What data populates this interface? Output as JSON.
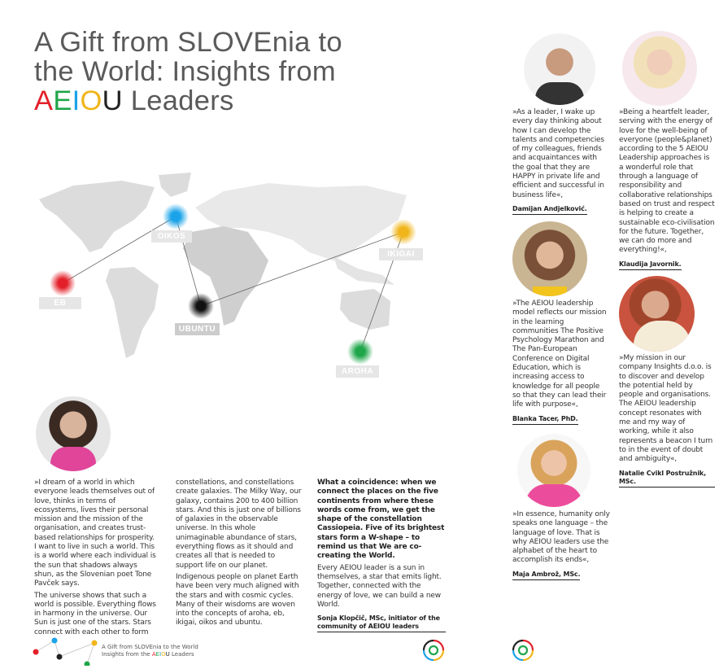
{
  "title": {
    "line1": "A Gift from SLOVEnia to",
    "line2": "the World: Insights from",
    "aeiou": [
      "A",
      "E",
      "I",
      "O",
      "U"
    ],
    "line3_rest": " Leaders"
  },
  "colors": {
    "red": "#e3202a",
    "green": "#1fa64a",
    "blue": "#1aa3e8",
    "yellow": "#f0b51a",
    "black": "#222222"
  },
  "map": {
    "places": [
      {
        "label": "EB",
        "color": "#e3202a"
      },
      {
        "label": "OIKOS",
        "color": "#1aa3e8"
      },
      {
        "label": "UBUNTU",
        "color": "#222222"
      },
      {
        "label": "IKIGAI",
        "color": "#f0b51a"
      },
      {
        "label": "AROHA",
        "color": "#1fa64a"
      }
    ]
  },
  "article": {
    "col1": [
      "»I dream of a world in which everyone leads themselves out of love, thinks in terms of ecosystems, lives their personal mission and the mission of the organisation, and creates trust-based relationships for prosperity. I want to live in such a world. This is a world where each individual is the sun that shadows always shun, as the Slovenian poet Tone Pavček says.",
      "The universe shows that such a world is possible. Everything flows in harmony in the universe. Our Sun is just one of the stars. Stars connect with each other to form"
    ],
    "col2": [
      "constellations, and constellations create galaxies. The Milky Way, our galaxy, contains 200 to 400 billion stars. And this is just one of billions of galaxies in the observable universe. In this whole unimaginable abundance of stars, everything flows as it should and creates all that is needed to support life on our planet.",
      "Indigenous people on planet Earth have been very much aligned with the stars and with cosmic cycles. Many of their wisdoms are woven into the concepts of aroha, eb, ikigai, oikos and ubuntu."
    ],
    "col3_bold": "What a coincidence: when we connect the places on the five continents from where these words come from, we get the shape of the constellation Cassiopeia. Five of its brightest stars form a W-shape – to remind us that We are co-creating the World.",
    "col3": "Every AEIOU leader is a sun in themselves, a star that emits light. Together, connected with the energy of love, we can build a new World.",
    "signature": "Sonja Klopčič, MSc, initiator of the community of AEIOU leaders"
  },
  "quotes": [
    {
      "text": "»As a leader, I wake up every day thinking about how I can develop the talents and competencies of my colleagues, friends and acquaintances with the goal that they are HAPPY in private life and efficient and successful in business life«,",
      "author": "Damijan Andjelković."
    },
    {
      "text": "»Being a heartfelt leader, serving with the energy of love for the well-being of everyone (people&planet) according to the 5 AEIOU Leadership approaches is a wonderful role that through a language of responsibility and collaborative relationships based on trust and respect is helping to create a sustainable eco-civilisation for the future. Together, we can do more and everything!«,",
      "author": "Klaudija Javornik."
    },
    {
      "text": "»The AEIOU leadership model reflects our mission in the learning communities The Positive Psychology Marathon and The Pan-European Conference on Digital Education, which is increasing access to knowledge for all people so that they can lead their life with purpose«,",
      "author": "Blanka Tacer, PhD."
    },
    {
      "text": "»My mission in our company Insights d.o.o. is to discover and develop the potential held by people and organisations. The AEIOU leadership concept resonates with me and my way of working, while it also represents a beacon I turn to in the event of doubt and ambiguity«,",
      "author": "Natalie Cvikl Postružnik, MSc."
    },
    {
      "text": "»In essence, humanity only speaks one language – the language of love. That is why AEIOU leaders use the alphabet of the heart to accomplish its ends«,",
      "author": "Maja Ambrož, MSc."
    }
  ],
  "footer": {
    "line1": "A Gift from SLOVEnia to the World",
    "line2_prefix": "Insights from the ",
    "line2_suffix": " Leaders"
  }
}
